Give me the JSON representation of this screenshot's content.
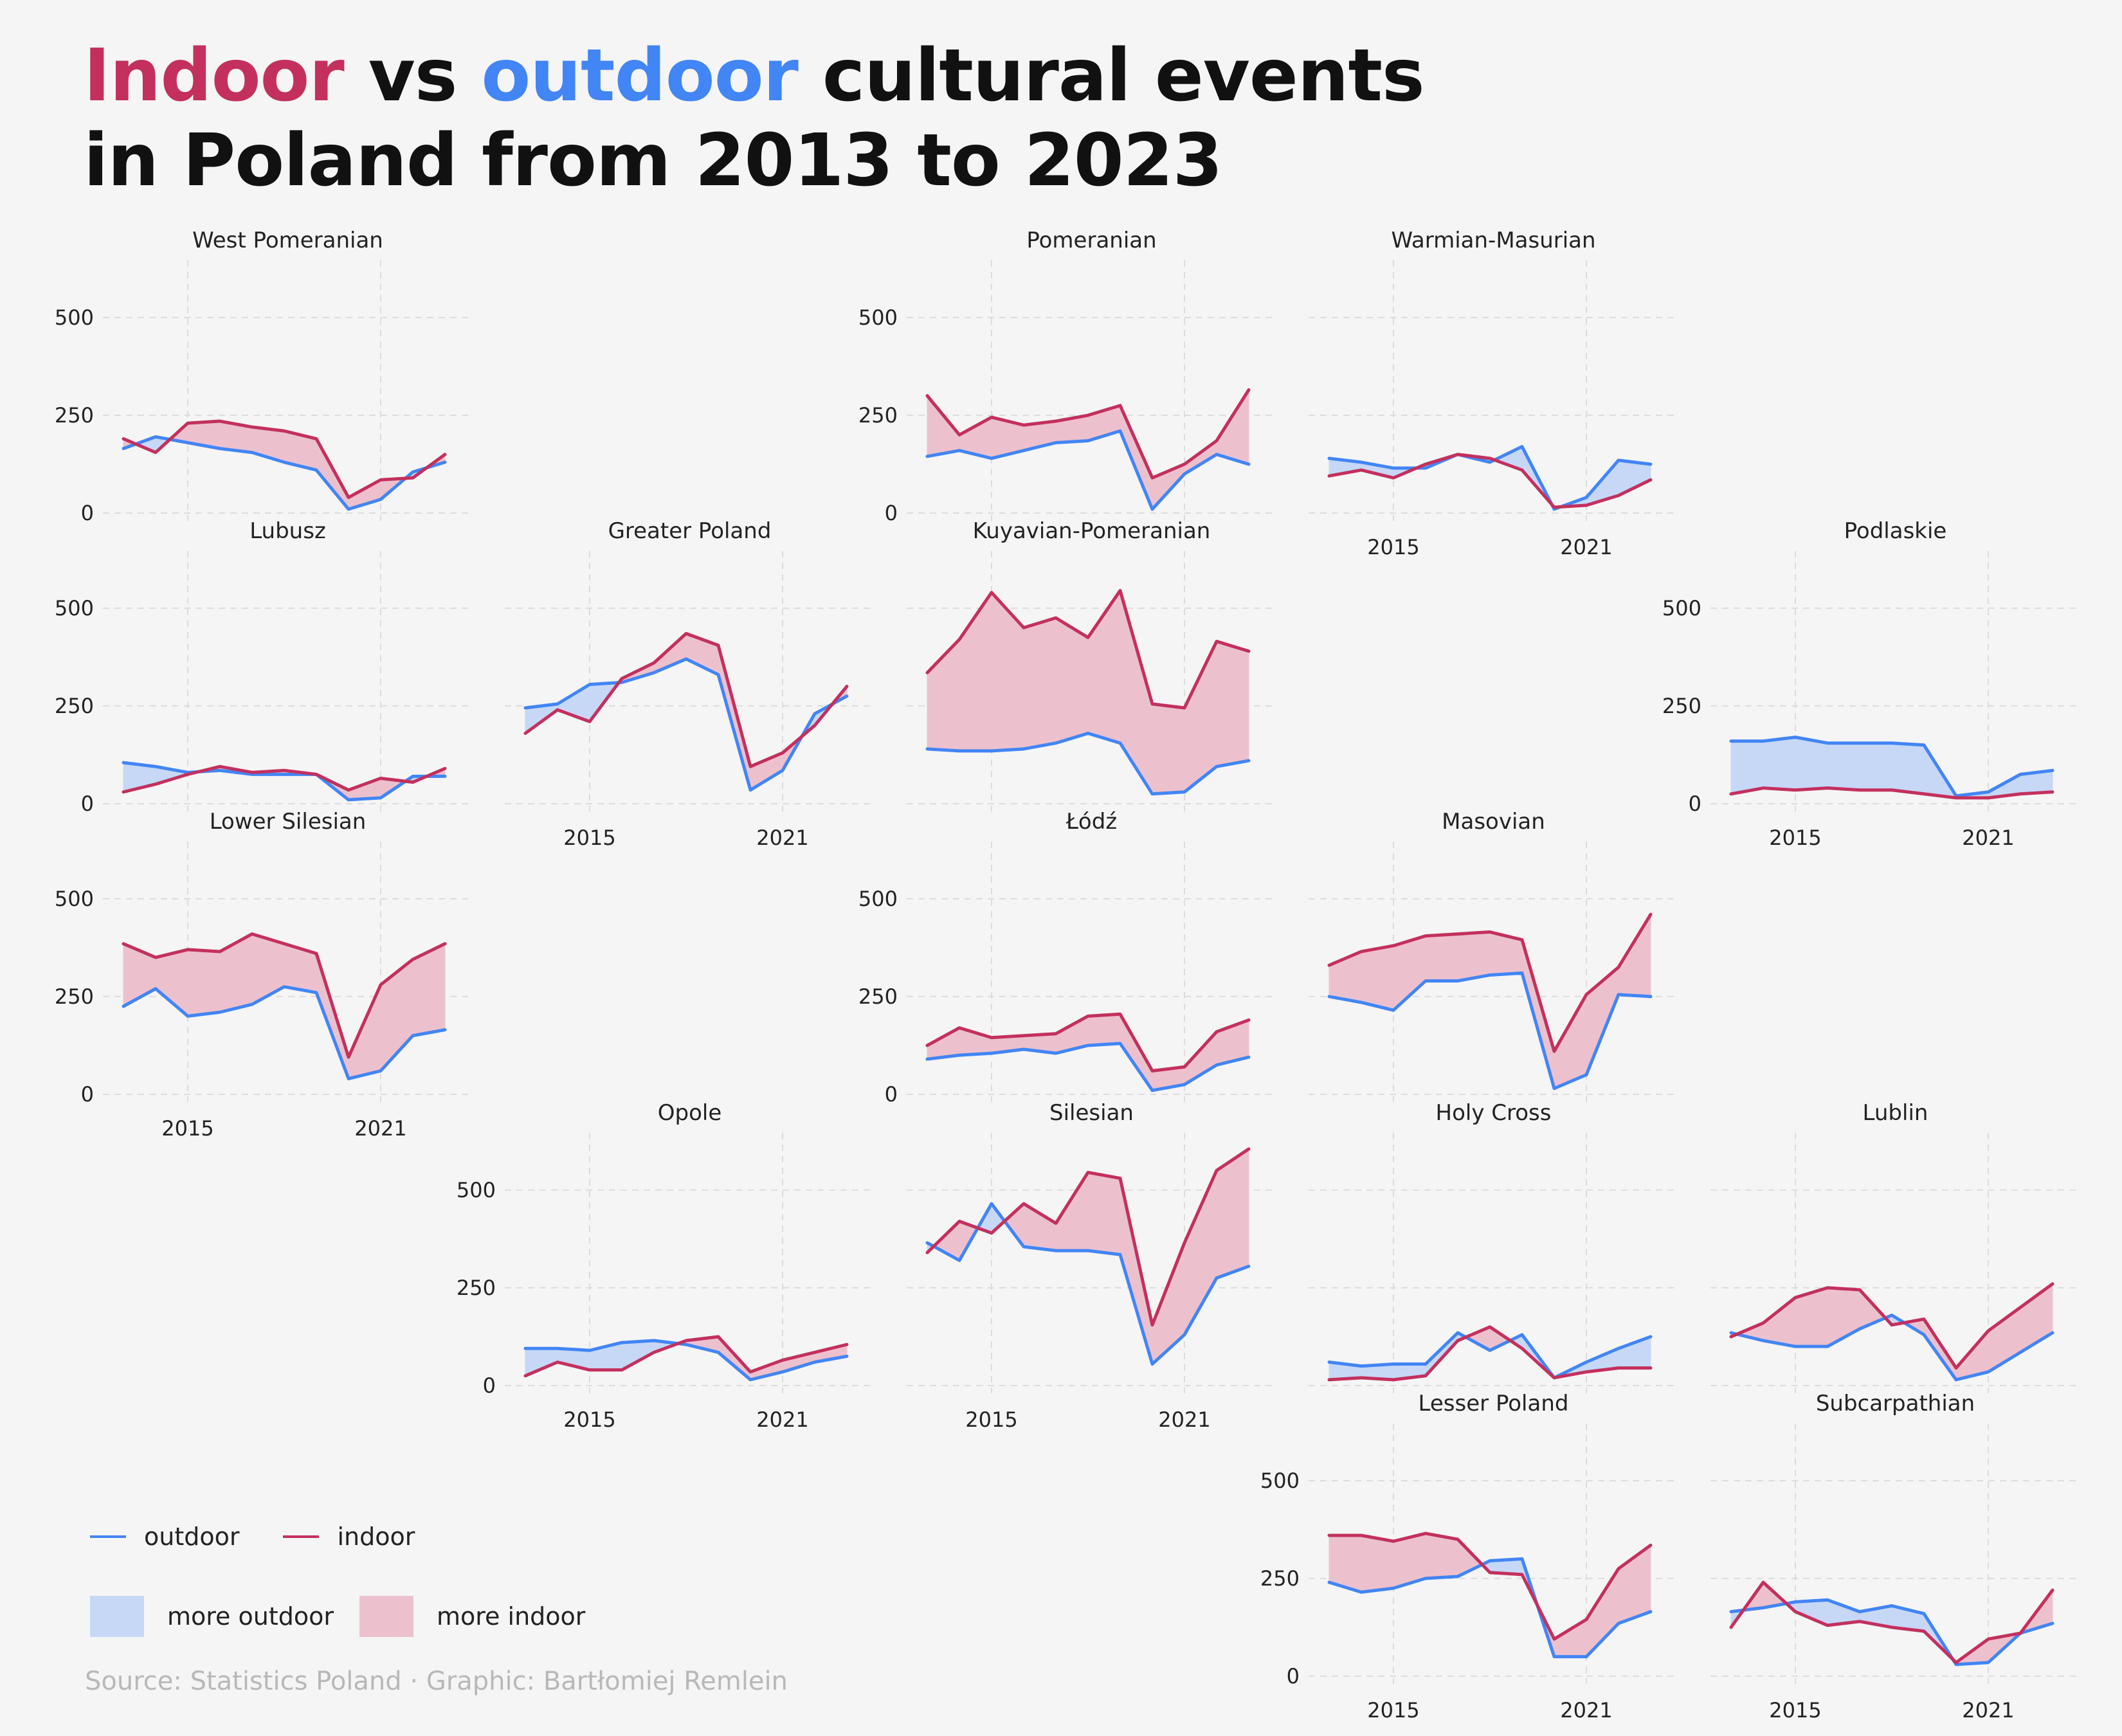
{
  "title": {
    "word_indoor": "Indoor",
    "word_vs": " vs ",
    "word_outdoor": "outdoor",
    "line1_rest": " cultural events",
    "line2": "in Poland from 2013 to 2023"
  },
  "colors": {
    "outdoor": "#4285f4",
    "indoor": "#c3305e",
    "more_outdoor_fill": "#c6d8f6",
    "more_indoor_fill": "#ecc1cd"
  },
  "legend": {
    "outdoor": "outdoor",
    "indoor": "indoor",
    "more_outdoor": "more outdoor",
    "more_indoor": "more indoor"
  },
  "source": "Source: Statistics Poland · Graphic: Bartłomiej Remlein",
  "chart_data": {
    "type": "line",
    "layout": "small-multiples grid (tile map of Polish voivodeships)",
    "x": [
      2013,
      2014,
      2015,
      2016,
      2017,
      2018,
      2019,
      2020,
      2021,
      2022,
      2023
    ],
    "x_ticks": [
      "2015",
      "2021"
    ],
    "y_ticks": [
      "0",
      "250",
      "500"
    ],
    "xlim": [
      2013,
      2023
    ],
    "ylim": [
      0,
      600
    ],
    "grid": true,
    "legend_position": "bottom-left",
    "panels": [
      {
        "name": "West Pomeranian",
        "row": 0,
        "col": 0,
        "outdoor": [
          165,
          195,
          180,
          165,
          155,
          130,
          110,
          10,
          35,
          105,
          130
        ],
        "indoor": [
          190,
          155,
          230,
          235,
          220,
          210,
          190,
          40,
          85,
          90,
          150
        ]
      },
      {
        "name": "Pomeranian",
        "row": 0,
        "col": 2,
        "outdoor": [
          145,
          160,
          140,
          160,
          180,
          185,
          210,
          10,
          100,
          150,
          125
        ],
        "indoor": [
          300,
          200,
          245,
          225,
          235,
          250,
          275,
          90,
          125,
          185,
          315
        ]
      },
      {
        "name": "Warmian-Masurian",
        "row": 0,
        "col": 3,
        "outdoor": [
          140,
          130,
          115,
          115,
          150,
          130,
          170,
          10,
          40,
          135,
          125
        ],
        "indoor": [
          95,
          110,
          90,
          125,
          150,
          140,
          110,
          15,
          20,
          45,
          85
        ]
      },
      {
        "name": "Lubusz",
        "row": 1,
        "col": 0,
        "outdoor": [
          105,
          95,
          80,
          85,
          75,
          75,
          75,
          10,
          15,
          70,
          70
        ],
        "indoor": [
          30,
          50,
          75,
          95,
          80,
          85,
          75,
          35,
          65,
          55,
          90
        ]
      },
      {
        "name": "Greater Poland",
        "row": 1,
        "col": 1,
        "outdoor": [
          245,
          255,
          305,
          310,
          335,
          370,
          330,
          35,
          85,
          230,
          275
        ],
        "indoor": [
          180,
          240,
          210,
          320,
          360,
          435,
          405,
          95,
          130,
          200,
          300
        ]
      },
      {
        "name": "Kuyavian-Pomeranian",
        "row": 1,
        "col": 2,
        "outdoor": [
          140,
          135,
          135,
          140,
          155,
          180,
          155,
          25,
          30,
          95,
          110
        ],
        "indoor": [
          335,
          420,
          540,
          450,
          475,
          425,
          545,
          255,
          245,
          415,
          390
        ]
      },
      {
        "name": "Podlaskie",
        "row": 1,
        "col": 4,
        "outdoor": [
          160,
          160,
          170,
          155,
          155,
          155,
          150,
          20,
          30,
          75,
          85
        ],
        "indoor": [
          25,
          40,
          35,
          40,
          35,
          35,
          25,
          15,
          15,
          25,
          30
        ]
      },
      {
        "name": "Lower Silesian",
        "row": 2,
        "col": 0,
        "outdoor": [
          225,
          270,
          200,
          210,
          230,
          275,
          260,
          40,
          60,
          150,
          165
        ],
        "indoor": [
          385,
          350,
          370,
          365,
          410,
          385,
          360,
          95,
          280,
          345,
          385
        ]
      },
      {
        "name": "Łódź",
        "row": 2,
        "col": 2,
        "outdoor": [
          90,
          100,
          105,
          115,
          105,
          125,
          130,
          10,
          25,
          75,
          95
        ],
        "indoor": [
          125,
          170,
          145,
          150,
          155,
          200,
          205,
          60,
          70,
          160,
          190
        ]
      },
      {
        "name": "Masovian",
        "row": 2,
        "col": 3,
        "outdoor": [
          250,
          235,
          215,
          290,
          290,
          305,
          310,
          15,
          50,
          255,
          250
        ],
        "indoor": [
          330,
          365,
          380,
          405,
          410,
          415,
          395,
          110,
          255,
          325,
          460
        ]
      },
      {
        "name": "Opole",
        "row": 3,
        "col": 1,
        "outdoor": [
          95,
          95,
          90,
          110,
          115,
          105,
          85,
          15,
          35,
          60,
          75
        ],
        "indoor": [
          25,
          60,
          40,
          40,
          85,
          115,
          125,
          35,
          65,
          85,
          105
        ]
      },
      {
        "name": "Silesian",
        "row": 3,
        "col": 2,
        "outdoor": [
          365,
          320,
          465,
          355,
          345,
          345,
          335,
          55,
          130,
          275,
          305
        ],
        "indoor": [
          340,
          420,
          390,
          465,
          415,
          545,
          530,
          155,
          365,
          550,
          605
        ]
      },
      {
        "name": "Holy Cross",
        "row": 3,
        "col": 3,
        "outdoor": [
          60,
          50,
          55,
          55,
          135,
          90,
          130,
          20,
          60,
          95,
          125
        ],
        "indoor": [
          15,
          20,
          15,
          25,
          115,
          150,
          95,
          20,
          35,
          45,
          45
        ]
      },
      {
        "name": "Lublin",
        "row": 3,
        "col": 4,
        "outdoor": [
          135,
          115,
          100,
          100,
          145,
          180,
          130,
          15,
          35,
          85,
          135
        ],
        "indoor": [
          125,
          160,
          225,
          250,
          245,
          155,
          170,
          45,
          140,
          200,
          260
        ]
      },
      {
        "name": "Lesser Poland",
        "row": 4,
        "col": 3,
        "outdoor": [
          240,
          215,
          225,
          250,
          255,
          295,
          300,
          50,
          50,
          135,
          165
        ],
        "indoor": [
          360,
          360,
          345,
          365,
          350,
          265,
          260,
          95,
          145,
          275,
          335
        ]
      },
      {
        "name": "Subcarpathian",
        "row": 4,
        "col": 4,
        "outdoor": [
          165,
          175,
          190,
          195,
          165,
          180,
          160,
          30,
          35,
          110,
          135
        ],
        "indoor": [
          125,
          240,
          165,
          130,
          140,
          125,
          115,
          35,
          95,
          110,
          220
        ]
      }
    ]
  }
}
